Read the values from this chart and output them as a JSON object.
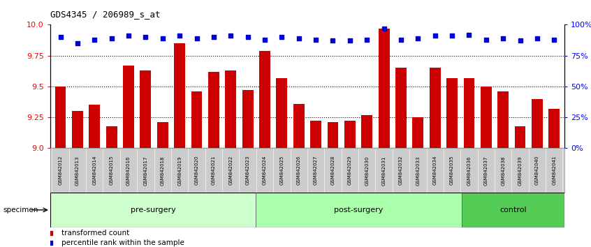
{
  "title": "GDS4345 / 206989_s_at",
  "samples": [
    "GSM842012",
    "GSM842013",
    "GSM842014",
    "GSM842015",
    "GSM842016",
    "GSM842017",
    "GSM842018",
    "GSM842019",
    "GSM842020",
    "GSM842021",
    "GSM842022",
    "GSM842023",
    "GSM842024",
    "GSM842025",
    "GSM842026",
    "GSM842027",
    "GSM842028",
    "GSM842029",
    "GSM842030",
    "GSM842031",
    "GSM842032",
    "GSM842033",
    "GSM842034",
    "GSM842035",
    "GSM842036",
    "GSM842037",
    "GSM842038",
    "GSM842039",
    "GSM842040",
    "GSM842041"
  ],
  "bar_values": [
    9.5,
    9.3,
    9.35,
    9.18,
    9.67,
    9.63,
    9.21,
    9.85,
    9.46,
    9.62,
    9.63,
    9.47,
    9.79,
    9.57,
    9.36,
    9.22,
    9.21,
    9.22,
    9.27,
    9.97,
    9.65,
    9.25,
    9.65,
    9.57,
    9.57,
    9.5,
    9.46,
    9.18,
    9.4,
    9.32
  ],
  "percentile_values": [
    90,
    85,
    88,
    89,
    91,
    90,
    89,
    91,
    89,
    90,
    91,
    90,
    88,
    90,
    89,
    88,
    87,
    87,
    88,
    97,
    88,
    89,
    91,
    91,
    92,
    88,
    89,
    87,
    89,
    88
  ],
  "groups": [
    {
      "label": "pre-surgery",
      "start": 0,
      "end": 12,
      "color": "#ccffcc"
    },
    {
      "label": "post-surgery",
      "start": 12,
      "end": 24,
      "color": "#aaffaa"
    },
    {
      "label": "control",
      "start": 24,
      "end": 30,
      "color": "#55cc55"
    }
  ],
  "bar_color": "#cc0000",
  "dot_color": "#0000cc",
  "ylim_left": [
    9.0,
    10.0
  ],
  "ylim_right": [
    0,
    100
  ],
  "yticks_left": [
    9.0,
    9.25,
    9.5,
    9.75,
    10.0
  ],
  "yticks_right": [
    0,
    25,
    50,
    75,
    100
  ],
  "ytick_labels_right": [
    "0%",
    "25%",
    "50%",
    "75%",
    "100%"
  ],
  "hline_values": [
    9.25,
    9.5,
    9.75
  ],
  "background_color": "#ffffff"
}
